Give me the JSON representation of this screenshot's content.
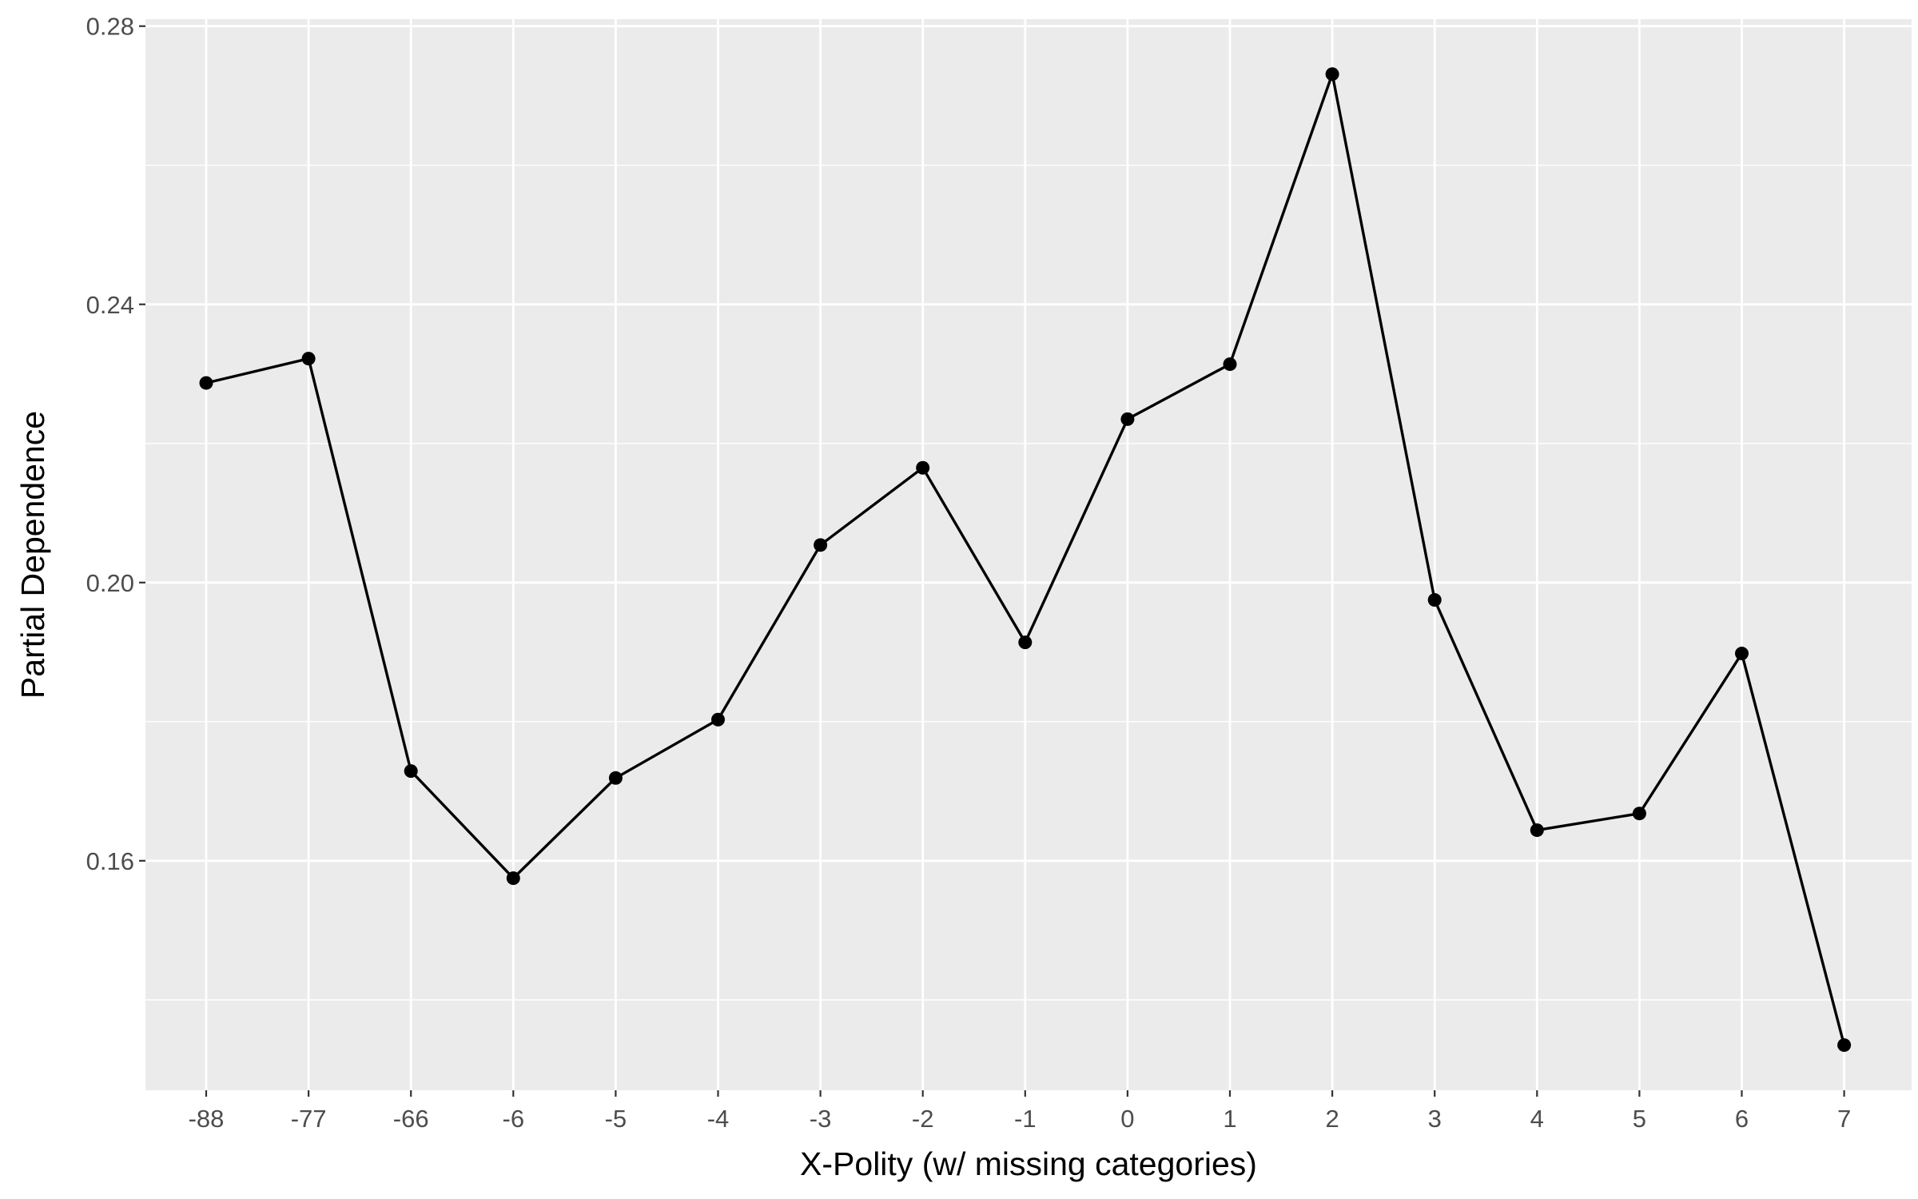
{
  "chart_data": {
    "type": "line",
    "title": "",
    "xlabel": "X-Polity (w/ missing categories)",
    "ylabel": "Partial Dependence",
    "categories": [
      "-88",
      "-77",
      "-66",
      "-6",
      "-5",
      "-4",
      "-3",
      "-2",
      "-1",
      "0",
      "1",
      "2",
      "3",
      "4",
      "5",
      "6",
      "7"
    ],
    "values": [
      0.2287,
      0.2322,
      0.1729,
      0.1575,
      0.1719,
      0.1803,
      0.2054,
      0.2165,
      0.1914,
      0.2235,
      0.2314,
      0.2731,
      0.1975,
      0.1644,
      0.1668,
      0.1898,
      0.1335
    ],
    "yticks": [
      "0.16",
      "0.20",
      "0.24",
      "0.28"
    ],
    "ylim": [
      0.127,
      0.281
    ],
    "grid": true,
    "legend": "none",
    "colors": {
      "panel_background": "#ebebeb",
      "grid_major": "#ffffff",
      "line": "#000000",
      "points": "#000000"
    }
  }
}
